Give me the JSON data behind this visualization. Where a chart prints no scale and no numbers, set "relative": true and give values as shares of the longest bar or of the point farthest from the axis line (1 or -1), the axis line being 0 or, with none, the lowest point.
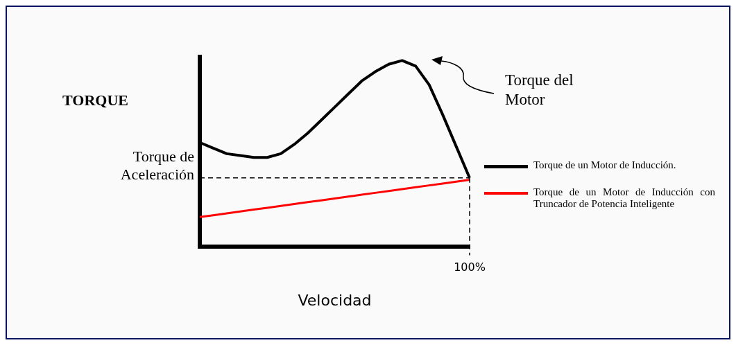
{
  "chart_data": {
    "type": "line",
    "relative": true,
    "xlabel": "Velocidad",
    "ylabel": "TORQUE",
    "categories": [
      null,
      null,
      null,
      null,
      null,
      null,
      null,
      null,
      null,
      null,
      null,
      null,
      null,
      null,
      null,
      null,
      null,
      null,
      null,
      null,
      null
    ],
    "series": [
      {
        "name": "Torque de un Motor de Inducción.",
        "color": "#000000",
        "values": [
          0.56,
          0.53,
          0.5,
          0.49,
          0.48,
          0.48,
          0.5,
          0.55,
          0.61,
          0.68,
          0.75,
          0.82,
          0.89,
          0.94,
          0.98,
          1.0,
          0.97,
          0.87,
          0.71,
          0.54,
          0.37
        ]
      },
      {
        "name": "Torque de un Motor de Inducción con Truncador de Potencia Inteligente",
        "color": "#ff0000",
        "values": [
          0.16,
          0.17,
          0.18,
          0.19,
          0.2,
          0.21,
          0.22,
          0.23,
          0.24,
          0.25,
          0.26,
          0.27,
          0.28,
          0.29,
          0.3,
          0.31,
          0.32,
          0.33,
          0.34,
          0.35,
          0.36
        ]
      }
    ],
    "ref_lines": [
      {
        "axis": "y",
        "value": 0.37,
        "label": "Torque de Aceleración",
        "line_style": "dashed",
        "color": "#000000"
      },
      {
        "axis": "x",
        "line_style": "dashed",
        "color": "#000000"
      }
    ],
    "annotations": [
      "Torque del Motor",
      "100%"
    ],
    "legend": "right",
    "grid": false
  }
}
